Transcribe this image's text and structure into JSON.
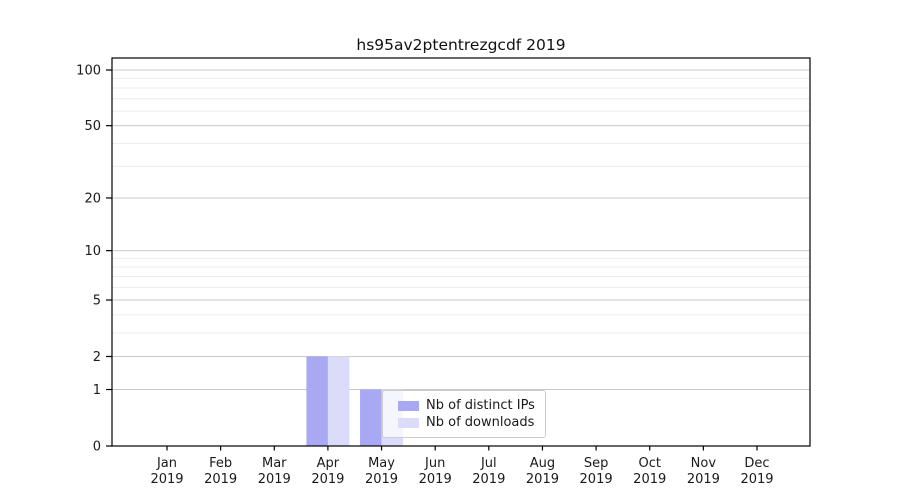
{
  "chart_data": {
    "type": "bar",
    "title": "hs95av2ptentrezgcdf 2019",
    "categories": [
      "Jan",
      "Feb",
      "Mar",
      "Apr",
      "May",
      "Jun",
      "Jul",
      "Aug",
      "Sep",
      "Oct",
      "Nov",
      "Dec"
    ],
    "x_year": "2019",
    "series": [
      {
        "name": "Nb of distinct IPs",
        "color": "#a8a8f3",
        "values": [
          0,
          0,
          0,
          2,
          1,
          0,
          0,
          0,
          0,
          0,
          0,
          0
        ]
      },
      {
        "name": "Nb of downloads",
        "color": "#dbdbfa",
        "values": [
          0,
          0,
          0,
          2,
          1,
          0,
          0,
          0,
          0,
          0,
          0,
          0
        ]
      }
    ],
    "yscale": "log1p",
    "yticks": [
      0,
      1,
      2,
      5,
      10,
      20,
      50,
      100
    ],
    "minor_yticks": [
      3,
      4,
      6,
      7,
      8,
      9,
      30,
      40,
      60,
      70,
      80,
      90
    ],
    "ylim": [
      0,
      120
    ],
    "xlabel": "",
    "ylabel": "",
    "grid": "horizontal",
    "legend_position": "lower-center"
  },
  "colors": {
    "major_grid": "#c9c9c9",
    "minor_grid": "#ececec",
    "axis": "#000000",
    "tick_text": "#1a1a1a"
  }
}
